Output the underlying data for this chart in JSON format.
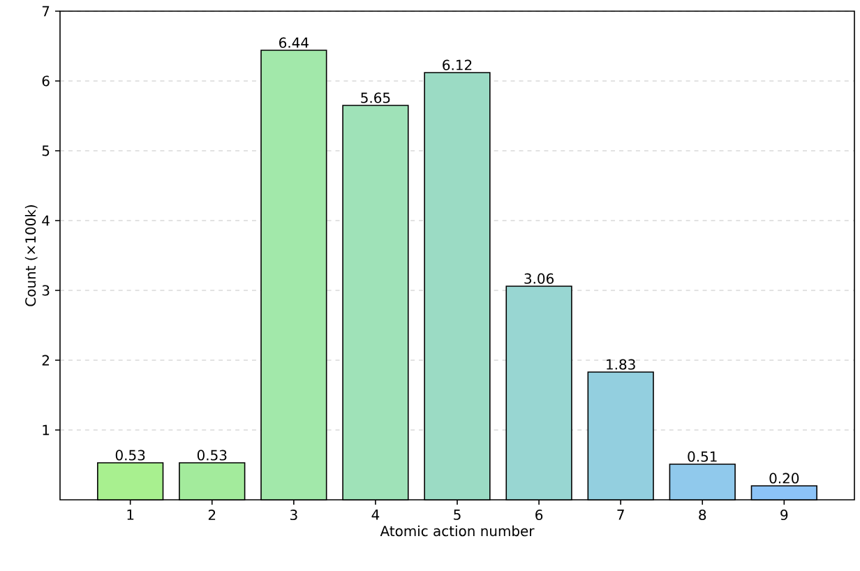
{
  "chart_data": {
    "type": "bar",
    "xlabel": "Atomic action number",
    "ylabel": "Count (×100k)",
    "categories": [
      "1",
      "2",
      "3",
      "4",
      "5",
      "6",
      "7",
      "8",
      "9"
    ],
    "values": [
      0.53,
      0.53,
      6.44,
      5.65,
      6.12,
      3.06,
      1.83,
      0.51,
      0.2
    ],
    "value_labels": [
      "0.53",
      "0.53",
      "6.44",
      "5.65",
      "6.12",
      "3.06",
      "1.83",
      "0.51",
      "0.20"
    ],
    "colors": [
      "#a8f08f",
      "#a3eb9c",
      "#a2e8aa",
      "#9fe2b8",
      "#9bdbc4",
      "#98d6d2",
      "#93cfdf",
      "#90c9ec",
      "#8cc3f7"
    ],
    "ylim": [
      0,
      7
    ],
    "yticks": [
      1,
      2,
      3,
      4,
      5,
      6,
      7
    ],
    "grid": "y"
  }
}
